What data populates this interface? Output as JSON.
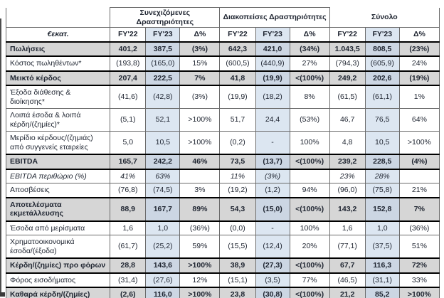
{
  "colors": {
    "row_highlight": "#d6d6d6",
    "fy23_column": "#dce6f1",
    "fy23_on_highlight": "#ccd6e3",
    "grid_line": "#6b6b6b",
    "strong_line": "#000000",
    "text": "#1e2430"
  },
  "table": {
    "unit_header": "€εκατ.",
    "groups": [
      {
        "label": "Συνεχιζόμενες Δραστηριότητες"
      },
      {
        "label": "Διακοπείσες Δραστηριότητες"
      },
      {
        "label": "Σύνολο"
      }
    ],
    "sub_headers": [
      "FY'22",
      "FY'23",
      "Δ%",
      "FY'22",
      "FY'23",
      "Δ%",
      "FY'22",
      "FY'23",
      "Δ%"
    ],
    "rows": [
      {
        "label": "Πωλήσεις",
        "emphasis": "bold",
        "values": [
          "401,2",
          "387,5",
          "(3%)",
          "642,3",
          "421,0",
          "(34%)",
          "1.043,5",
          "808,5",
          "(23%)"
        ]
      },
      {
        "label": "Κόστος πωληθέντων*",
        "emphasis": "normal",
        "values": [
          "(193,8)",
          "(165,0)",
          "15%",
          "(600,5)",
          "(440,9)",
          "27%",
          "(794,3)",
          "(605,9)",
          "24%"
        ]
      },
      {
        "label": "Μεικτό κέρδος",
        "emphasis": "bold",
        "values": [
          "207,4",
          "222,5",
          "7%",
          "41,8",
          "(19,9)",
          "<(100%)",
          "249,2",
          "202,6",
          "(19%)"
        ]
      },
      {
        "label": "Έξοδα διάθεσης & διοίκησης*",
        "emphasis": "normal",
        "values": [
          "(41,6)",
          "(42,8)",
          "(3%)",
          "(19,9)",
          "(18,2)",
          "8%",
          "(61,5)",
          "(61,1)",
          "1%"
        ]
      },
      {
        "label": "Λοιπά έσοδα & λοιπά κέρδη/(ζημίες)*",
        "emphasis": "normal",
        "values": [
          "(5,1)",
          "52,1",
          ">100%",
          "51,7",
          "24,4",
          "(53%)",
          "46,7",
          "76,5",
          "64%"
        ]
      },
      {
        "label": "Μερίδιο κέρδους/(ζημιάς) από συγγενείς εταιρείες",
        "emphasis": "normal",
        "values": [
          "5,0",
          "10,5",
          ">100%",
          "(0,2)",
          "-",
          "100%",
          "4,8",
          "10,5",
          ">100%"
        ]
      },
      {
        "label": "EBITDA",
        "emphasis": "bold",
        "values": [
          "165,7",
          "242,2",
          "46%",
          "73,5",
          "(13,7)",
          "<(100%)",
          "239,2",
          "228,5",
          "(4%)"
        ]
      },
      {
        "label": "EBITDA περιθώριο (%)",
        "emphasis": "italic",
        "values": [
          "41%",
          "63%",
          "",
          "11%",
          "(3%)",
          "",
          "23%",
          "28%",
          ""
        ]
      },
      {
        "label": "Αποσβέσεις",
        "emphasis": "normal",
        "values": [
          "(76,8)",
          "(74,5)",
          "3%",
          "(19,2)",
          "(1,2)",
          "94%",
          "(96,0)",
          "(75,8)",
          "21%"
        ]
      },
      {
        "label": "Αποτελέσματα εκμετάλλευσης",
        "emphasis": "bold",
        "values": [
          "88,9",
          "167,7",
          "89%",
          "54,3",
          "(15,0)",
          "<(100%)",
          "143,2",
          "152,8",
          "7%"
        ]
      },
      {
        "label": "Έσοδα από μερίσματα",
        "emphasis": "normal",
        "values": [
          "1,6",
          "1,0",
          "(36%)",
          "(0,0)",
          "-",
          "100%",
          "1,6",
          "1,0",
          "(36%)"
        ]
      },
      {
        "label": "Χρηματοοικονομικά έσοδα/(έξοδα)",
        "emphasis": "normal",
        "values": [
          "(61,7)",
          "(25,2)",
          "59%",
          "(15,5)",
          "(12,4)",
          "20%",
          "(77,1)",
          "(37,5)",
          "51%"
        ]
      },
      {
        "label": "Κέρδη/(ζημίες) προ φόρων",
        "emphasis": "bold",
        "values": [
          "28,8",
          "143,6",
          ">100%",
          "38,9",
          "(27,3)",
          "<(100%)",
          "67,7",
          "116,3",
          "72%"
        ]
      },
      {
        "label": "Φόρος εισοδήματος",
        "emphasis": "normal",
        "values": [
          "(31,4)",
          "(27,6)",
          "12%",
          "(15,1)",
          "(3,5)",
          "77%",
          "(46,5)",
          "(31,1)",
          "33%"
        ]
      },
      {
        "label": "Καθαρά κέρδη/(ζημίες)",
        "emphasis": "bold",
        "values": [
          "(2,6)",
          "116,0",
          ">100%",
          "23,8",
          "(30,8)",
          "<(100%)",
          "21,2",
          "85,2",
          ">100%"
        ]
      }
    ]
  }
}
